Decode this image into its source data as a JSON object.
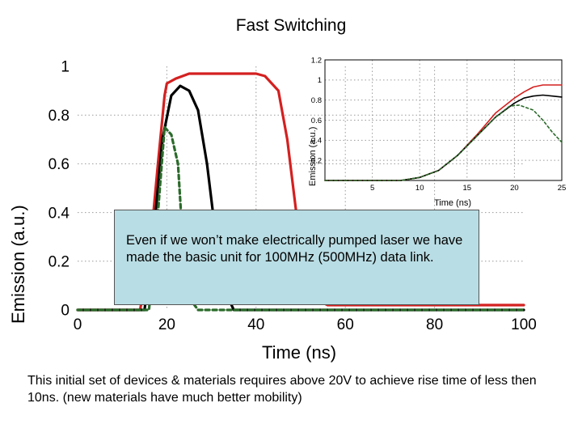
{
  "slide": {
    "title": "Fast Switching",
    "callout": "Even if we won’t make electrically pumped laser we have made the basic unit for 100MHz (500MHz) data link.",
    "caption": "This initial set of devices & materials requires above 20V to achieve rise time of less then 10ns. (new materials have much better mobility)"
  },
  "colors": {
    "red": "#d42020",
    "black": "#000000",
    "green": "#2a6a2a",
    "callout_bg": "#b9dde4"
  },
  "chart_data": [
    {
      "type": "line",
      "name": "main",
      "title": "",
      "xlabel": "Time (ns)",
      "ylabel": "Emission (a.u.)",
      "xlim": [
        0,
        100
      ],
      "ylim": [
        0,
        1
      ],
      "x_ticks": [
        "0",
        "20",
        "40",
        "60",
        "80",
        "100"
      ],
      "y_ticks": [
        "0",
        "0.2",
        "0.4",
        "0.6",
        "0.8",
        "1"
      ],
      "grid": "dotted",
      "series": [
        {
          "name": "red",
          "color": "#d42020",
          "style": "solid",
          "points": [
            [
              0,
              0
            ],
            [
              14,
              0
            ],
            [
              16,
              0.2
            ],
            [
              18,
              0.6
            ],
            [
              19.5,
              0.88
            ],
            [
              20,
              0.93
            ],
            [
              22,
              0.95
            ],
            [
              25,
              0.97
            ],
            [
              32,
              0.97
            ],
            [
              40,
              0.97
            ],
            [
              42,
              0.96
            ],
            [
              45,
              0.9
            ],
            [
              47,
              0.7
            ],
            [
              49,
              0.4
            ],
            [
              51,
              0.15
            ],
            [
              53,
              0.05
            ],
            [
              56,
              0.02
            ],
            [
              70,
              0.02
            ],
            [
              90,
              0.02
            ],
            [
              100,
              0.02
            ]
          ]
        },
        {
          "name": "black",
          "color": "#000000",
          "style": "solid",
          "points": [
            [
              0,
              0
            ],
            [
              15,
              0
            ],
            [
              17,
              0.3
            ],
            [
              19,
              0.7
            ],
            [
              21,
              0.88
            ],
            [
              23,
              0.92
            ],
            [
              25,
              0.9
            ],
            [
              27,
              0.82
            ],
            [
              29,
              0.6
            ],
            [
              31,
              0.3
            ],
            [
              33,
              0.08
            ],
            [
              35,
              0
            ],
            [
              40,
              0
            ],
            [
              100,
              0
            ]
          ]
        },
        {
          "name": "green",
          "color": "#2a6a2a",
          "style": "dashed",
          "points": [
            [
              0,
              0
            ],
            [
              16,
              0
            ],
            [
              18,
              0.4
            ],
            [
              19.5,
              0.75
            ],
            [
              21,
              0.72
            ],
            [
              22.5,
              0.6
            ],
            [
              23.5,
              0.3
            ],
            [
              25,
              0.05
            ],
            [
              27,
              0
            ],
            [
              40,
              0
            ],
            [
              100,
              0
            ]
          ]
        }
      ]
    },
    {
      "type": "line",
      "name": "inset",
      "xlabel": "Time (ns)",
      "ylabel": "Emission (a.u.)",
      "xlim": [
        0,
        25
      ],
      "ylim": [
        0,
        1.2
      ],
      "x_ticks": [
        "5",
        "10",
        "15",
        "20",
        "25"
      ],
      "y_ticks": [
        "0.2",
        "0.4",
        "0.6",
        "0.8",
        "1",
        "1.2"
      ],
      "grid": "dotted",
      "series": [
        {
          "name": "red",
          "color": "#d42020",
          "style": "solid",
          "points": [
            [
              0,
              0
            ],
            [
              8,
              0
            ],
            [
              10,
              0.03
            ],
            [
              12,
              0.1
            ],
            [
              14,
              0.25
            ],
            [
              16,
              0.45
            ],
            [
              18,
              0.67
            ],
            [
              20,
              0.82
            ],
            [
              21,
              0.88
            ],
            [
              22,
              0.93
            ],
            [
              23,
              0.95
            ],
            [
              25,
              0.95
            ]
          ]
        },
        {
          "name": "black",
          "color": "#000000",
          "style": "solid",
          "points": [
            [
              0,
              0
            ],
            [
              8,
              0
            ],
            [
              10,
              0.03
            ],
            [
              12,
              0.1
            ],
            [
              14,
              0.25
            ],
            [
              16,
              0.44
            ],
            [
              18,
              0.63
            ],
            [
              20,
              0.77
            ],
            [
              21,
              0.82
            ],
            [
              22,
              0.84
            ],
            [
              23,
              0.85
            ],
            [
              24,
              0.84
            ],
            [
              25,
              0.83
            ]
          ]
        },
        {
          "name": "green",
          "color": "#2a6a2a",
          "style": "dashed",
          "points": [
            [
              0,
              0
            ],
            [
              8,
              0
            ],
            [
              10,
              0.03
            ],
            [
              12,
              0.1
            ],
            [
              14,
              0.25
            ],
            [
              16,
              0.44
            ],
            [
              18,
              0.63
            ],
            [
              19.5,
              0.74
            ],
            [
              20.5,
              0.75
            ],
            [
              22,
              0.7
            ],
            [
              23,
              0.6
            ],
            [
              24,
              0.48
            ],
            [
              25,
              0.38
            ]
          ]
        }
      ]
    }
  ]
}
